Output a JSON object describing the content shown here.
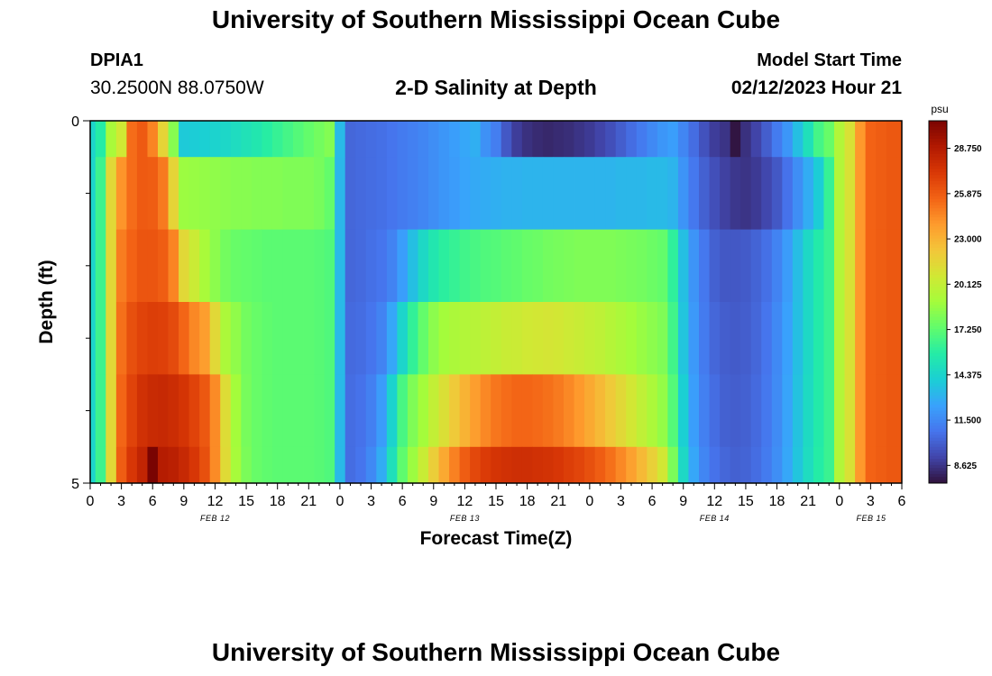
{
  "header": {
    "title": "University of Southern Mississippi Ocean Cube",
    "station_name": "DPIA1",
    "station_coords": "30.2500N  88.0750W",
    "plot_title": "2-D Salinity at Depth",
    "model_label": "Model Start Time",
    "model_time": "02/12/2023 Hour 21"
  },
  "footer": {
    "title": "University of Southern Mississippi Ocean Cube"
  },
  "chart_data": {
    "type": "heatmap",
    "xlabel": "Forecast Time(Z)",
    "ylabel": "Depth (ft)",
    "colorbar_unit": "psu",
    "x_tick_labels": [
      "0",
      "3",
      "6",
      "9",
      "12",
      "15",
      "18",
      "21",
      "0",
      "3",
      "6",
      "9",
      "12",
      "15",
      "18",
      "21",
      "0",
      "3",
      "6",
      "9",
      "12",
      "15",
      "18",
      "21",
      "0",
      "3",
      "6"
    ],
    "y_tick_labels": [
      "0",
      "5"
    ],
    "date_labels": [
      "FEB 12",
      "FEB 13",
      "FEB 14",
      "FEB 15"
    ],
    "ylim": [
      0,
      5
    ],
    "colorbar_ticks": [
      28.75,
      25.875,
      23.0,
      20.125,
      17.25,
      14.375,
      11.5,
      8.625
    ],
    "colorbar_tick_labels": [
      "28.750",
      "25.875",
      "23.000",
      "20.125",
      "17.250",
      "14.375",
      "11.500",
      "8.625"
    ],
    "color_range": [
      7.5,
      30.5
    ],
    "colormap": [
      "#30123b",
      "#4145ab",
      "#4675ed",
      "#39a2fc",
      "#1bcfd4",
      "#24eca6",
      "#61fc6c",
      "#a4fc3b",
      "#d1e834",
      "#f3c63a",
      "#fe9b2d",
      "#f36315",
      "#d93806",
      "#b11901",
      "#7a0402"
    ],
    "time_hours_from_feb12_00": [
      0,
      1,
      2,
      3,
      4,
      5,
      6,
      7,
      8,
      9,
      10,
      11,
      12,
      13,
      14,
      15,
      16,
      17,
      18,
      19,
      20,
      21,
      22,
      23,
      24,
      25,
      26,
      27,
      28,
      29,
      30,
      31,
      32,
      33,
      34,
      35,
      36,
      37,
      38,
      39,
      40,
      41,
      42,
      43,
      44,
      45,
      46,
      47,
      48,
      49,
      50,
      51,
      52,
      53,
      54,
      55,
      56,
      57,
      58,
      59,
      60,
      61,
      62,
      63,
      64,
      65,
      66,
      67,
      68,
      69,
      70,
      71,
      72,
      73,
      74,
      75,
      76,
      77,
      78
    ],
    "depth_bins_ft": [
      [
        0,
        0.5
      ],
      [
        0.5,
        1.5
      ],
      [
        1.5,
        2.5
      ],
      [
        2.5,
        3.5
      ],
      [
        3.5,
        4.5
      ],
      [
        4.5,
        5
      ]
    ],
    "salinity_psu": [
      [
        14.4,
        15.7,
        19.2,
        20.6,
        25.3,
        25.9,
        24.6,
        21.6,
        18.3,
        13.9,
        14.0,
        14.1,
        14.3,
        14.5,
        14.8,
        15.1,
        15.4,
        15.8,
        16.2,
        16.6,
        17.0,
        17.4,
        17.8,
        18.2,
        13.3,
        10.3,
        10.4,
        10.5,
        10.6,
        10.8,
        11.0,
        11.2,
        11.4,
        11.7,
        12.0,
        12.3,
        12.6,
        12.9,
        11.8,
        11.1,
        9.8,
        8.9,
        8.5,
        8.3,
        8.2,
        8.3,
        8.4,
        8.6,
        8.8,
        9.1,
        9.5,
        10.0,
        10.5,
        11.0,
        11.5,
        12.0,
        12.3,
        11.4,
        10.5,
        9.6,
        8.9,
        8.6,
        7.6,
        8.5,
        9.1,
        10.0,
        11.0,
        12.0,
        13.5,
        15.0,
        16.6,
        17.5,
        19.5,
        21.0,
        24.0,
        25.6,
        25.8,
        26.0,
        26.0
      ],
      [
        14.4,
        16.4,
        21.4,
        24.1,
        25.3,
        25.9,
        25.8,
        24.9,
        21.6,
        18.8,
        18.7,
        18.6,
        18.5,
        18.4,
        18.3,
        18.3,
        18.2,
        18.2,
        18.2,
        18.1,
        18.1,
        18.1,
        17.9,
        17.4,
        13.2,
        10.3,
        10.4,
        10.5,
        10.6,
        10.8,
        11.0,
        11.2,
        11.4,
        11.7,
        12.0,
        12.2,
        12.5,
        12.7,
        12.8,
        12.9,
        13.0,
        13.0,
        13.1,
        13.1,
        13.1,
        13.1,
        13.1,
        13.1,
        13.1,
        13.1,
        13.1,
        13.2,
        13.2,
        13.2,
        13.3,
        13.3,
        13.1,
        11.9,
        10.9,
        10.1,
        9.5,
        9.0,
        8.7,
        8.6,
        8.8,
        9.2,
        9.8,
        10.7,
        11.7,
        12.8,
        14.0,
        16.2,
        19.5,
        21.0,
        24.0,
        25.6,
        25.8,
        26.0,
        26.0
      ],
      [
        14.4,
        16.4,
        21.4,
        24.8,
        25.6,
        26.1,
        26.1,
        25.8,
        24.6,
        21.4,
        20.4,
        19.2,
        18.4,
        17.8,
        17.5,
        17.4,
        17.3,
        17.2,
        17.2,
        17.2,
        17.2,
        17.2,
        17.1,
        16.9,
        13.3,
        10.3,
        10.4,
        10.6,
        10.8,
        11.3,
        12.3,
        13.5,
        14.6,
        15.4,
        15.9,
        16.2,
        16.5,
        16.7,
        16.9,
        17.0,
        17.2,
        17.3,
        17.5,
        17.6,
        17.8,
        17.9,
        18.0,
        18.1,
        18.1,
        18.1,
        18.1,
        18.0,
        17.9,
        17.8,
        17.6,
        17.4,
        16.0,
        13.5,
        11.9,
        10.9,
        10.1,
        9.8,
        9.8,
        9.9,
        10.2,
        10.6,
        11.3,
        12.2,
        13.4,
        14.6,
        15.6,
        16.3,
        19.5,
        21.0,
        24.0,
        25.6,
        25.8,
        26.0,
        26.0
      ],
      [
        14.4,
        16.4,
        21.4,
        25.2,
        26.3,
        26.8,
        27.0,
        26.9,
        26.5,
        25.5,
        24.5,
        23.8,
        21.4,
        19.3,
        18.5,
        17.8,
        17.5,
        17.3,
        17.2,
        17.2,
        17.2,
        17.2,
        17.1,
        16.9,
        13.3,
        10.4,
        10.5,
        10.8,
        11.3,
        12.6,
        14.4,
        16.1,
        17.4,
        18.4,
        19.0,
        19.3,
        19.5,
        19.7,
        19.9,
        20.1,
        20.3,
        20.4,
        20.6,
        20.7,
        20.8,
        20.7,
        20.5,
        20.3,
        20.1,
        19.9,
        19.6,
        19.3,
        19.0,
        18.7,
        18.4,
        18.1,
        16.5,
        13.7,
        12.1,
        11.0,
        10.3,
        10.0,
        9.9,
        10.0,
        10.3,
        10.8,
        11.5,
        12.4,
        13.5,
        14.6,
        15.6,
        16.3,
        19.5,
        21.0,
        24.0,
        25.6,
        25.8,
        26.0,
        26.0
      ],
      [
        14.4,
        16.4,
        21.4,
        25.5,
        26.8,
        27.6,
        27.9,
        28.0,
        27.8,
        27.4,
        26.8,
        26.0,
        24.4,
        21.2,
        19.0,
        17.9,
        17.5,
        17.3,
        17.2,
        17.2,
        17.2,
        17.2,
        17.1,
        16.9,
        13.3,
        10.5,
        10.7,
        11.2,
        12.2,
        14.3,
        16.7,
        18.1,
        19.0,
        20.1,
        21.1,
        22.1,
        23.0,
        23.8,
        24.5,
        25.0,
        25.3,
        25.5,
        25.5,
        25.4,
        25.2,
        24.9,
        24.5,
        24.0,
        23.4,
        22.8,
        22.1,
        21.4,
        20.7,
        20.0,
        19.3,
        18.6,
        17.0,
        14.1,
        12.3,
        11.2,
        10.5,
        10.1,
        10.0,
        10.1,
        10.4,
        10.9,
        11.6,
        12.5,
        13.6,
        14.7,
        15.6,
        16.3,
        19.5,
        21.0,
        24.0,
        25.6,
        25.8,
        26.0,
        26.0
      ],
      [
        14.4,
        16.4,
        21.4,
        25.8,
        27.3,
        28.2,
        30.5,
        28.7,
        28.5,
        28.0,
        27.3,
        26.3,
        24.4,
        21.3,
        19.1,
        18.0,
        17.5,
        17.3,
        17.2,
        17.2,
        17.2,
        17.2,
        17.1,
        16.9,
        13.3,
        10.5,
        10.8,
        11.5,
        12.8,
        15.0,
        17.3,
        18.8,
        20.3,
        21.9,
        23.4,
        24.7,
        25.8,
        26.6,
        27.1,
        27.4,
        27.6,
        27.7,
        27.7,
        27.6,
        27.5,
        27.3,
        27.0,
        26.7,
        26.3,
        25.8,
        25.2,
        24.5,
        23.7,
        22.8,
        21.8,
        20.7,
        18.0,
        14.6,
        12.6,
        11.4,
        10.7,
        10.3,
        10.1,
        10.2,
        10.5,
        11.0,
        11.7,
        12.6,
        13.7,
        14.8,
        15.7,
        16.3,
        19.5,
        21.0,
        24.0,
        25.6,
        25.8,
        26.0,
        26.0
      ]
    ]
  }
}
